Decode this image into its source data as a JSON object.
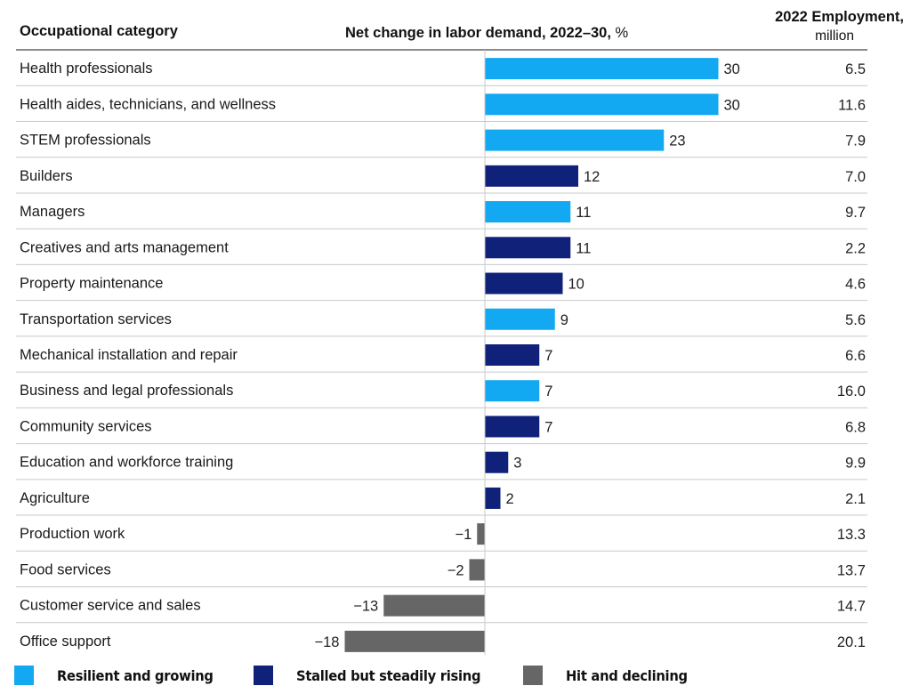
{
  "headers": {
    "category": "Occupational category",
    "change_main": "Net change in labor demand, 2022–30,",
    "change_unit": "%",
    "employment_line1": "2022 Employment,",
    "employment_line2": "million"
  },
  "colors": {
    "resilient": "#13a8f2",
    "stalled": "#10217a",
    "declining": "#666666"
  },
  "legend": [
    {
      "key": "resilient",
      "label": "Resilient and growing"
    },
    {
      "key": "stalled",
      "label": "Stalled but steadily rising"
    },
    {
      "key": "declining",
      "label": "Hit and declining"
    }
  ],
  "chart_data": {
    "type": "bar",
    "orientation": "horizontal",
    "title": "Net change in labor demand, 2022–30, %",
    "xlabel": "Net change in labor demand, 2022–30, %",
    "ylabel": "Occupational category",
    "xlim": [
      -18,
      30
    ],
    "categories": [
      "Health professionals",
      "Health aides, technicians, and wellness",
      "STEM professionals",
      "Builders",
      "Managers",
      "Creatives and arts management",
      "Property maintenance",
      "Transportation services",
      "Mechanical installation and repair",
      "Business and legal professionals",
      "Community services",
      "Education and workforce training",
      "Agriculture",
      "Production work",
      "Food services",
      "Customer service and sales",
      "Office support"
    ],
    "values": [
      30,
      30,
      23,
      12,
      11,
      11,
      10,
      9,
      7,
      7,
      7,
      3,
      2,
      -1,
      -2,
      -13,
      -18
    ],
    "value_labels": [
      "30",
      "30",
      "23",
      "12",
      "11",
      "11",
      "10",
      "9",
      "7",
      "7",
      "7",
      "3",
      "2",
      "−1",
      "−2",
      "−13",
      "−18"
    ],
    "groups": [
      "resilient",
      "resilient",
      "resilient",
      "stalled",
      "resilient",
      "stalled",
      "stalled",
      "resilient",
      "stalled",
      "resilient",
      "stalled",
      "stalled",
      "stalled",
      "declining",
      "declining",
      "declining",
      "declining"
    ],
    "employment_2022_million": [
      "6.5",
      "11.6",
      "7.9",
      "7.0",
      "9.7",
      "2.2",
      "4.6",
      "5.6",
      "6.6",
      "16.0",
      "6.8",
      "9.9",
      "2.1",
      "13.3",
      "13.7",
      "14.7",
      "20.1"
    ]
  }
}
